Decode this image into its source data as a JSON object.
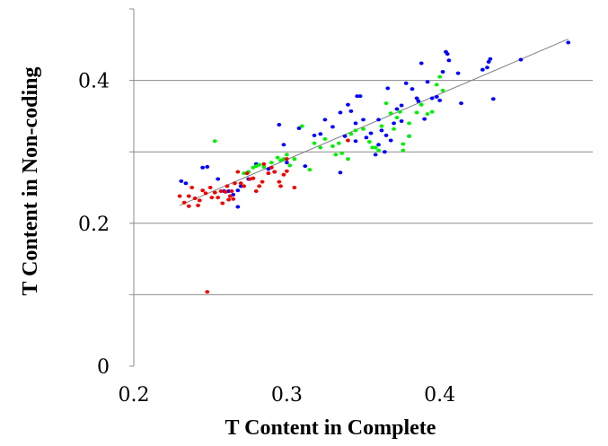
{
  "chart_data": {
    "type": "scatter",
    "title": "",
    "xlabel": "T Content in Complete",
    "ylabel": "T Content in Non-coding",
    "xlim": [
      0.2,
      0.5
    ],
    "ylim": [
      0,
      0.5
    ],
    "x_ticks": [
      {
        "value": 0.2,
        "label": "0.2"
      },
      {
        "value": 0.3,
        "label": "0.3"
      },
      {
        "value": 0.4,
        "label": "0.4"
      }
    ],
    "y_ticks": [
      {
        "value": 0,
        "label": "0"
      },
      {
        "value": 0.2,
        "label": "0.2"
      },
      {
        "value": 0.4,
        "label": "0.4"
      }
    ],
    "y_gridlines": [
      0.1,
      0.2,
      0.3,
      0.4
    ],
    "grid": "horizontal",
    "legend": "none",
    "trendline": {
      "x": [
        0.23,
        0.484
      ],
      "y": [
        0.225,
        0.458
      ],
      "color": "#808080"
    },
    "series": [
      {
        "color": "#0000ff",
        "points": [
          [
            0.231,
            0.259
          ],
          [
            0.234,
            0.256
          ],
          [
            0.245,
            0.278
          ],
          [
            0.248,
            0.279
          ],
          [
            0.255,
            0.262
          ],
          [
            0.259,
            0.245
          ],
          [
            0.262,
            0.245
          ],
          [
            0.265,
            0.24
          ],
          [
            0.268,
            0.223
          ],
          [
            0.27,
            0.252
          ],
          [
            0.275,
            0.262
          ],
          [
            0.28,
            0.283
          ],
          [
            0.288,
            0.276
          ],
          [
            0.292,
            0.272
          ],
          [
            0.295,
            0.338
          ],
          [
            0.3,
            0.285
          ],
          [
            0.308,
            0.333
          ],
          [
            0.312,
            0.28
          ],
          [
            0.318,
            0.323
          ],
          [
            0.322,
            0.325
          ],
          [
            0.325,
            0.345
          ],
          [
            0.33,
            0.335
          ],
          [
            0.335,
            0.355
          ],
          [
            0.335,
            0.271
          ],
          [
            0.338,
            0.322
          ],
          [
            0.34,
            0.366
          ],
          [
            0.342,
            0.357
          ],
          [
            0.345,
            0.315
          ],
          [
            0.345,
            0.34
          ],
          [
            0.346,
            0.378
          ],
          [
            0.348,
            0.378
          ],
          [
            0.35,
            0.345
          ],
          [
            0.352,
            0.32
          ],
          [
            0.355,
            0.326
          ],
          [
            0.358,
            0.296
          ],
          [
            0.36,
            0.31
          ],
          [
            0.36,
            0.345
          ],
          [
            0.362,
            0.33
          ],
          [
            0.364,
            0.3
          ],
          [
            0.365,
            0.323
          ],
          [
            0.366,
            0.389
          ],
          [
            0.368,
            0.316
          ],
          [
            0.37,
            0.34
          ],
          [
            0.372,
            0.36
          ],
          [
            0.375,
            0.365
          ],
          [
            0.375,
            0.343
          ],
          [
            0.378,
            0.396
          ],
          [
            0.38,
            0.322
          ],
          [
            0.382,
            0.388
          ],
          [
            0.385,
            0.375
          ],
          [
            0.386,
            0.371
          ],
          [
            0.388,
            0.424
          ],
          [
            0.39,
            0.346
          ],
          [
            0.392,
            0.398
          ],
          [
            0.395,
            0.375
          ],
          [
            0.398,
            0.377
          ],
          [
            0.4,
            0.372
          ],
          [
            0.402,
            0.412
          ],
          [
            0.404,
            0.44
          ],
          [
            0.405,
            0.437
          ],
          [
            0.406,
            0.428
          ],
          [
            0.412,
            0.41
          ],
          [
            0.414,
            0.368
          ],
          [
            0.428,
            0.415
          ],
          [
            0.431,
            0.418
          ],
          [
            0.432,
            0.426
          ],
          [
            0.433,
            0.43
          ],
          [
            0.435,
            0.374
          ],
          [
            0.453,
            0.429
          ],
          [
            0.484,
            0.453
          ],
          [
            0.298,
            0.31
          ],
          [
            0.268,
            0.246
          ]
        ]
      },
      {
        "color": "#00ee00",
        "points": [
          [
            0.253,
            0.315
          ],
          [
            0.272,
            0.27
          ],
          [
            0.275,
            0.272
          ],
          [
            0.278,
            0.278
          ],
          [
            0.28,
            0.28
          ],
          [
            0.282,
            0.282
          ],
          [
            0.285,
            0.279
          ],
          [
            0.29,
            0.285
          ],
          [
            0.294,
            0.292
          ],
          [
            0.296,
            0.288
          ],
          [
            0.298,
            0.29
          ],
          [
            0.3,
            0.296
          ],
          [
            0.302,
            0.281
          ],
          [
            0.305,
            0.29
          ],
          [
            0.31,
            0.336
          ],
          [
            0.315,
            0.275
          ],
          [
            0.318,
            0.312
          ],
          [
            0.322,
            0.306
          ],
          [
            0.325,
            0.318
          ],
          [
            0.33,
            0.308
          ],
          [
            0.332,
            0.296
          ],
          [
            0.334,
            0.312
          ],
          [
            0.336,
            0.298
          ],
          [
            0.34,
            0.29
          ],
          [
            0.342,
            0.325
          ],
          [
            0.345,
            0.33
          ],
          [
            0.35,
            0.332
          ],
          [
            0.354,
            0.314
          ],
          [
            0.356,
            0.306
          ],
          [
            0.36,
            0.302
          ],
          [
            0.362,
            0.336
          ],
          [
            0.365,
            0.368
          ],
          [
            0.368,
            0.354
          ],
          [
            0.37,
            0.332
          ],
          [
            0.372,
            0.348
          ],
          [
            0.374,
            0.356
          ],
          [
            0.376,
            0.302
          ],
          [
            0.38,
            0.322
          ],
          [
            0.385,
            0.355
          ],
          [
            0.388,
            0.366
          ],
          [
            0.392,
            0.353
          ],
          [
            0.395,
            0.356
          ],
          [
            0.398,
            0.394
          ],
          [
            0.4,
            0.405
          ],
          [
            0.402,
            0.386
          ],
          [
            0.38,
            0.34
          ],
          [
            0.376,
            0.311
          ],
          [
            0.358,
            0.306
          ]
        ]
      },
      {
        "color": "#ee0000",
        "points": [
          [
            0.23,
            0.238
          ],
          [
            0.233,
            0.229
          ],
          [
            0.236,
            0.238
          ],
          [
            0.238,
            0.25
          ],
          [
            0.24,
            0.235
          ],
          [
            0.242,
            0.225
          ],
          [
            0.243,
            0.232
          ],
          [
            0.245,
            0.246
          ],
          [
            0.247,
            0.242
          ],
          [
            0.248,
            0.104
          ],
          [
            0.25,
            0.25
          ],
          [
            0.251,
            0.236
          ],
          [
            0.253,
            0.243
          ],
          [
            0.255,
            0.236
          ],
          [
            0.257,
            0.245
          ],
          [
            0.258,
            0.228
          ],
          [
            0.26,
            0.244
          ],
          [
            0.261,
            0.252
          ],
          [
            0.263,
            0.238
          ],
          [
            0.264,
            0.245
          ],
          [
            0.265,
            0.234
          ],
          [
            0.266,
            0.256
          ],
          [
            0.268,
            0.272
          ],
          [
            0.27,
            0.256
          ],
          [
            0.272,
            0.252
          ],
          [
            0.274,
            0.27
          ],
          [
            0.276,
            0.262
          ],
          [
            0.278,
            0.263
          ],
          [
            0.28,
            0.245
          ],
          [
            0.282,
            0.252
          ],
          [
            0.284,
            0.258
          ],
          [
            0.285,
            0.283
          ],
          [
            0.288,
            0.27
          ],
          [
            0.29,
            0.278
          ],
          [
            0.292,
            0.272
          ],
          [
            0.295,
            0.258
          ],
          [
            0.296,
            0.252
          ],
          [
            0.298,
            0.268
          ],
          [
            0.3,
            0.273
          ],
          [
            0.3,
            0.29
          ],
          [
            0.305,
            0.25
          ],
          [
            0.34,
            0.316
          ],
          [
            0.262,
            0.233
          ],
          [
            0.236,
            0.224
          ]
        ]
      }
    ]
  }
}
